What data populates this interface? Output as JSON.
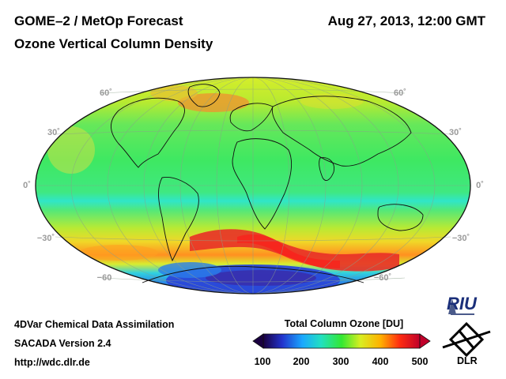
{
  "header": {
    "title_line1": "GOME–2 / MetOp Forecast",
    "title_line2": "Ozone Vertical Column Density",
    "timestamp": "Aug 27, 2013, 12:00 GMT"
  },
  "map": {
    "projection": "Hammer-Aitoff",
    "lat_labels": {
      "left": [
        "60˚",
        "30˚",
        "0˚",
        "−30˚",
        "−60"
      ],
      "right": [
        "60˚",
        "30˚",
        "0˚",
        "−30˚",
        "−60˚"
      ]
    },
    "colors": {
      "polar_low": "#2a5de0",
      "mid_latitude": "#c9e23a",
      "tropics": "#44e85a",
      "high_band": "#e83028",
      "land_outline": "#111111"
    }
  },
  "colorbar": {
    "title": "Total Column Ozone [DU]",
    "ticks": [
      "100",
      "200",
      "300",
      "400",
      "500"
    ],
    "range": [
      100,
      500
    ],
    "stops": [
      "#1a0040",
      "#2233cc",
      "#1aa8ff",
      "#22e0c0",
      "#33e833",
      "#d8ee22",
      "#ffb000",
      "#ff2d10",
      "#c0002a"
    ]
  },
  "footer": {
    "line1": "4DVar Chemical Data Assimilation",
    "line2": "SACADA Version 2.4",
    "line3": "http://wdc.dlr.de"
  },
  "logos": {
    "riu": "RIU",
    "dlr": "DLR"
  }
}
